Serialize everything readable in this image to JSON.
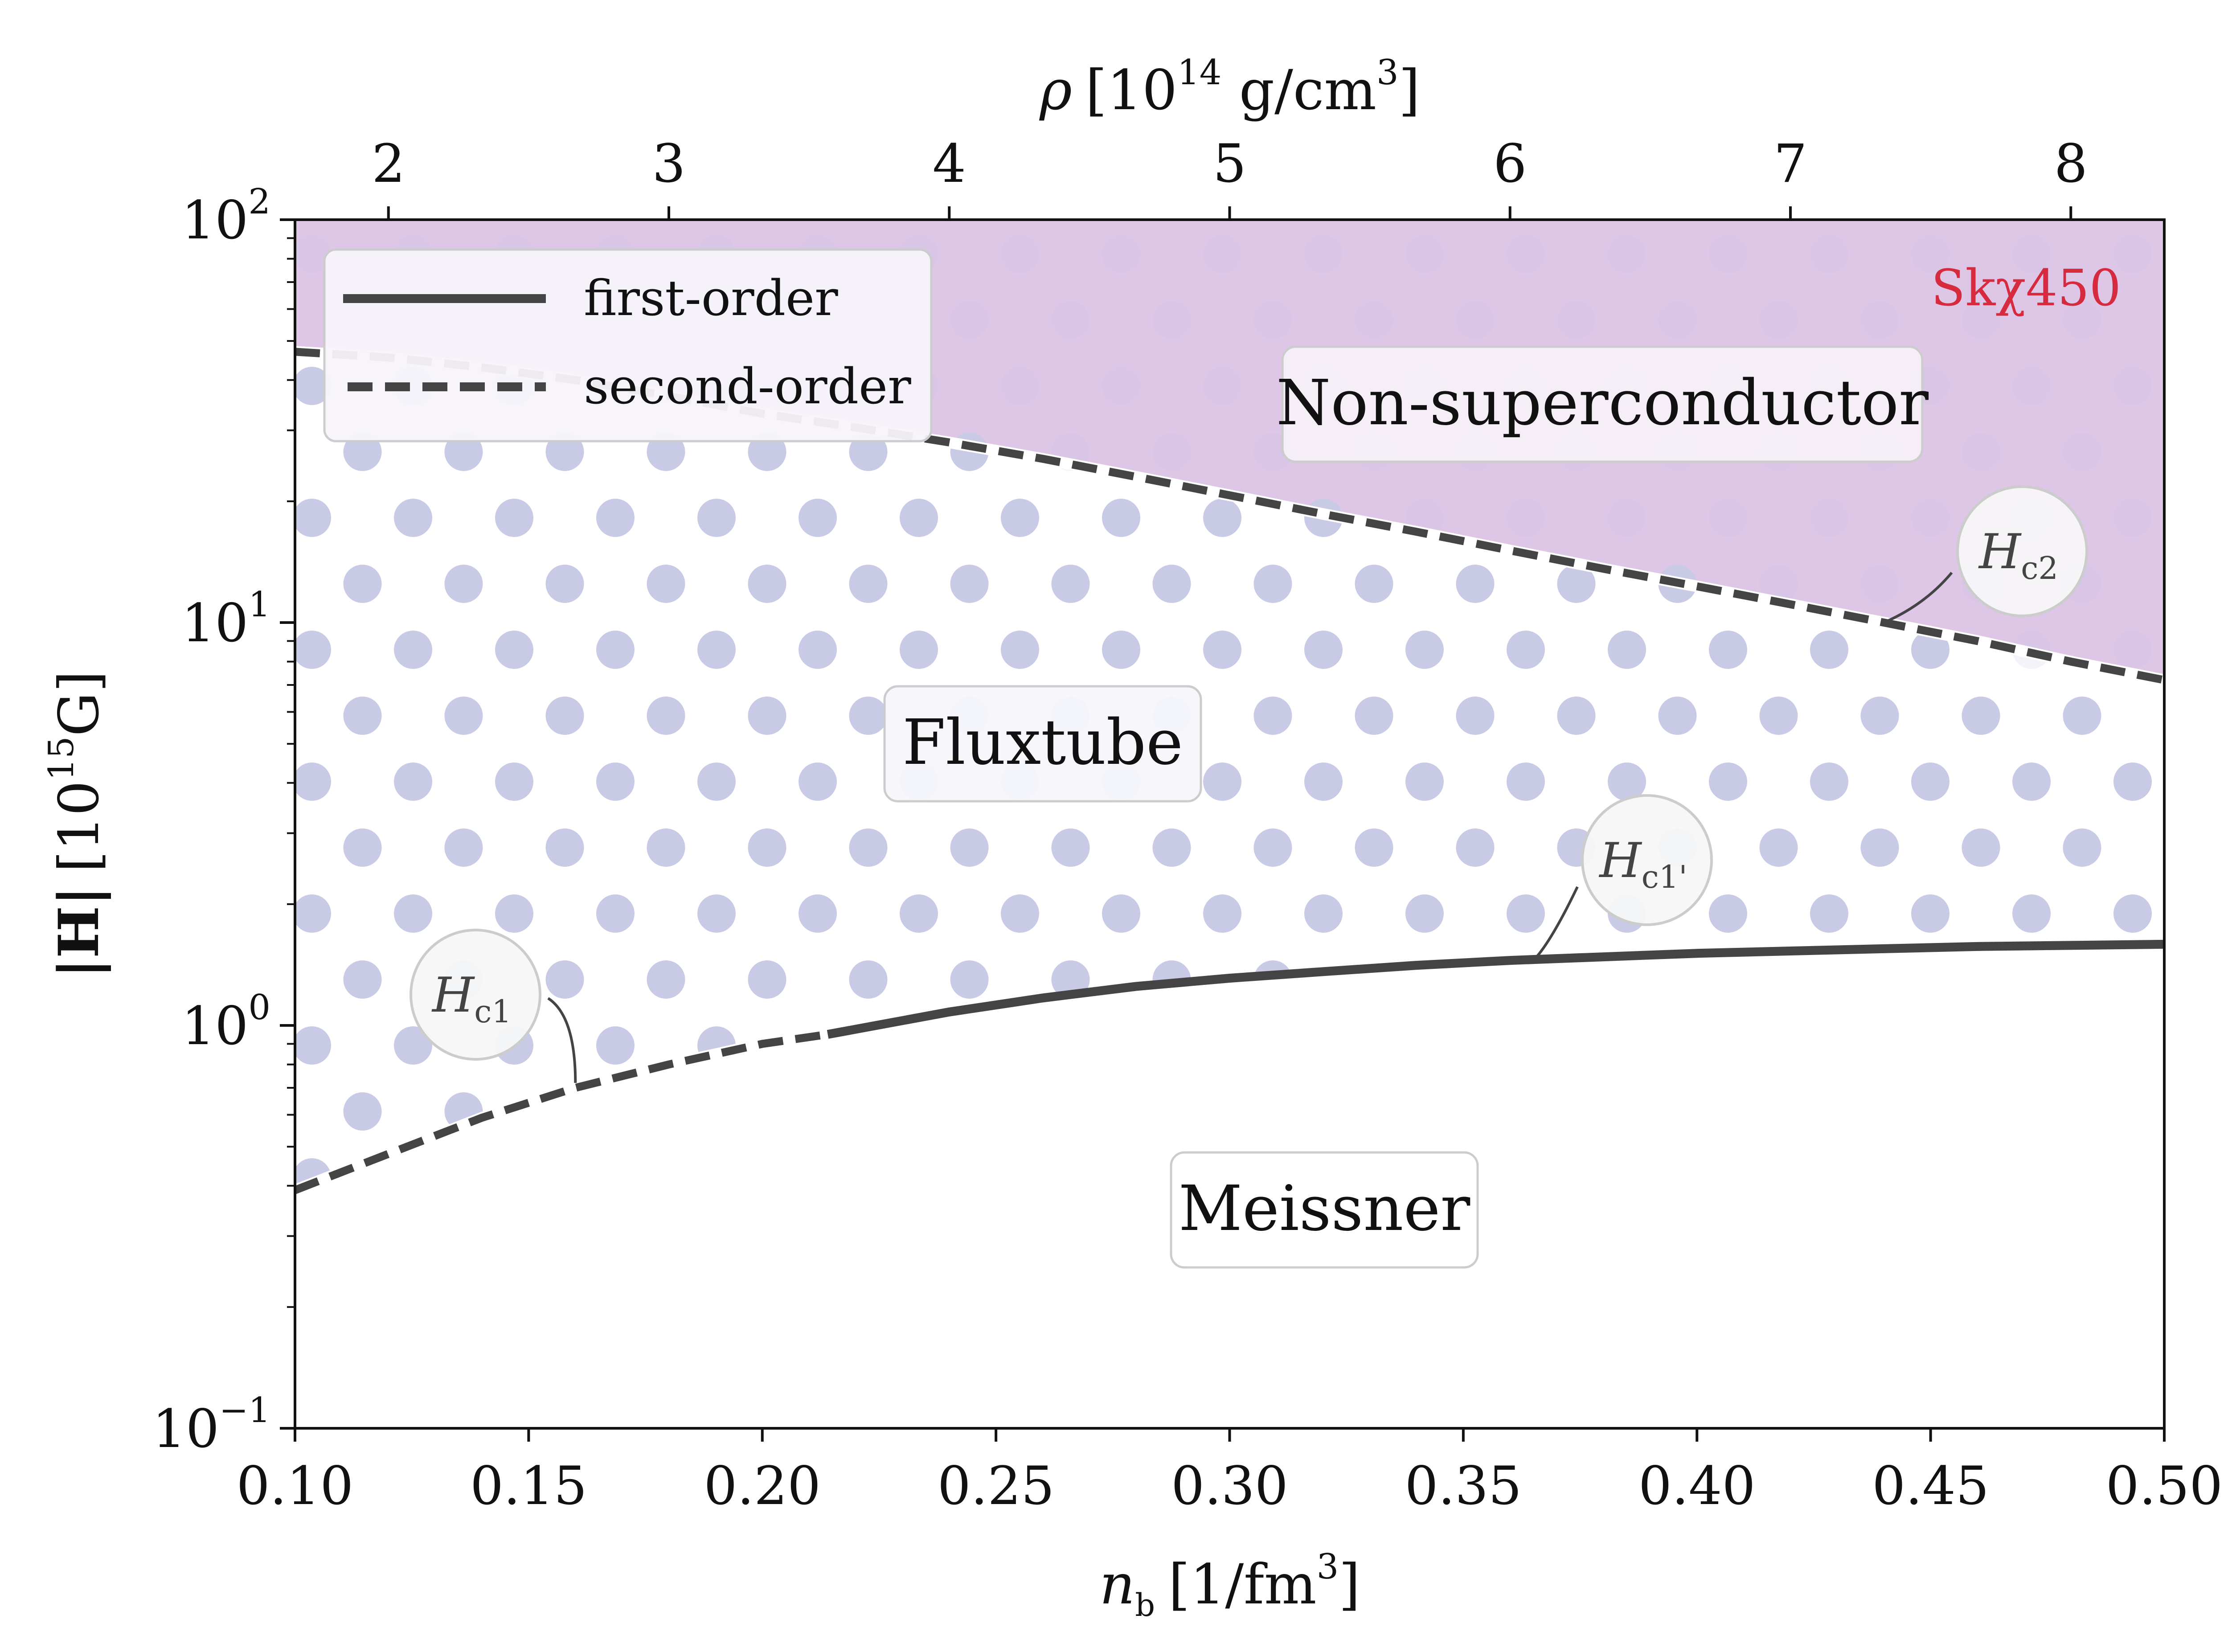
{
  "chart_data": {
    "type": "line",
    "model_label": "Skχ450",
    "model_label_color": "#d62a3e",
    "x_axis": {
      "label": "n_b [1/fm³]",
      "label_parts": {
        "sym": "n",
        "sub": "b",
        "unit": "[1/fm",
        "sup": "3",
        "close": "]"
      },
      "range": [
        0.1,
        0.5
      ],
      "ticks": [
        0.1,
        0.15,
        0.2,
        0.25,
        0.3,
        0.35,
        0.4,
        0.45,
        0.5
      ],
      "tick_labels": [
        "0.10",
        "0.15",
        "0.20",
        "0.25",
        "0.30",
        "0.35",
        "0.40",
        "0.45",
        "0.50"
      ]
    },
    "top_axis": {
      "label": "ρ [10¹⁴ g/cm³]",
      "label_parts": {
        "sym": "ρ",
        "open": "[10",
        "sup1": "14",
        "mid": " g/cm",
        "sup2": "3",
        "close": "]"
      },
      "ticks": [
        2,
        3,
        4,
        5,
        6,
        7,
        8
      ],
      "tick_labels": [
        "2",
        "3",
        "4",
        "5",
        "6",
        "7",
        "8"
      ],
      "nb_per_unit": 0.06
    },
    "y_axis": {
      "label": "|H| [10¹⁵G]",
      "label_parts": {
        "sym": "|H|",
        "open": "[10",
        "sup": "15",
        "unit": "G]"
      },
      "scale": "log",
      "range": [
        0.1,
        100
      ],
      "ticks": [
        0.1,
        1,
        10,
        100
      ],
      "tick_labels": [
        {
          "base": "10",
          "exp": "−1"
        },
        {
          "base": "10",
          "exp": "0"
        },
        {
          "base": "10",
          "exp": "1"
        },
        {
          "base": "10",
          "exp": "2"
        }
      ]
    },
    "legend": {
      "position": "top-left",
      "entries": [
        {
          "label": "first-order",
          "style": "solid"
        },
        {
          "label": "second-order",
          "style": "dashed"
        }
      ]
    },
    "series": [
      {
        "name": "Hc2",
        "style": "dashed",
        "x": [
          0.1,
          0.12,
          0.14,
          0.16,
          0.18,
          0.2,
          0.22,
          0.24,
          0.26,
          0.28,
          0.3,
          0.32,
          0.34,
          0.36,
          0.38,
          0.4,
          0.42,
          0.44,
          0.46,
          0.48,
          0.5
        ],
        "y": [
          47.0,
          45.5,
          43.0,
          40.0,
          36.5,
          33.0,
          30.5,
          28.0,
          25.5,
          23.0,
          20.7,
          18.6,
          16.8,
          15.1,
          13.6,
          12.3,
          11.1,
          10.0,
          9.0,
          8.0,
          7.2
        ]
      },
      {
        "name": "Hc1",
        "style": "dashed",
        "x": [
          0.1,
          0.12,
          0.14,
          0.16,
          0.18,
          0.2,
          0.214
        ],
        "y": [
          0.39,
          0.48,
          0.59,
          0.7,
          0.8,
          0.9,
          0.95
        ]
      },
      {
        "name": "Hc1'",
        "style": "solid",
        "x": [
          0.214,
          0.24,
          0.26,
          0.28,
          0.3,
          0.32,
          0.34,
          0.36,
          0.38,
          0.4,
          0.42,
          0.44,
          0.46,
          0.48,
          0.5
        ],
        "y": [
          0.95,
          1.08,
          1.17,
          1.25,
          1.31,
          1.36,
          1.41,
          1.45,
          1.48,
          1.51,
          1.53,
          1.55,
          1.57,
          1.58,
          1.59
        ]
      }
    ],
    "regions": [
      {
        "name": "Non-superconductor",
        "label": "Non-superconductor",
        "color": "#dec6e6"
      },
      {
        "name": "Fluxtube",
        "label": "Fluxtube",
        "color": "#c9cae6"
      },
      {
        "name": "Meissner",
        "label": "Meissner",
        "color": "#ffffff"
      }
    ],
    "annotations": [
      {
        "text": "H",
        "sub": "c2",
        "points_to": {
          "x": 0.44,
          "y": 10.0
        }
      },
      {
        "text": "H",
        "sub": "c1'",
        "points_to": {
          "x": 0.365,
          "y": 1.45
        }
      },
      {
        "text": "H",
        "sub": "c1",
        "points_to": {
          "x": 0.16,
          "y": 0.72
        }
      }
    ]
  }
}
